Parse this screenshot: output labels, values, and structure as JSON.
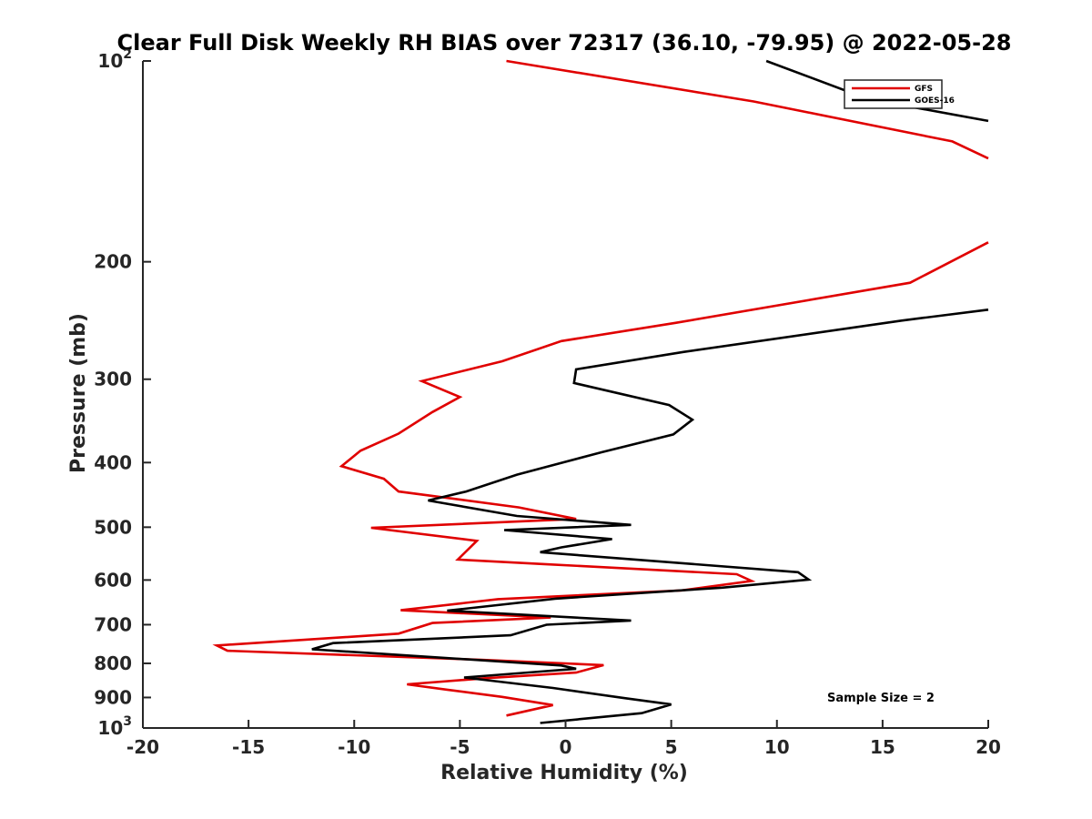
{
  "chart_data": {
    "type": "line",
    "title": "Clear Full Disk Weekly RH BIAS over 72317 (36.10, -79.95) @ 2022-05-28",
    "xlabel": "Relative Humidity (%)",
    "ylabel": "Pressure (mb)",
    "xlim": [
      -20,
      20
    ],
    "ylim": [
      100,
      1000
    ],
    "y_scale": "log",
    "y_reversed": true,
    "grid": false,
    "x_ticks": [
      -20,
      -15,
      -10,
      -5,
      0,
      5,
      10,
      15,
      20
    ],
    "x_tick_labels": [
      "-20",
      "-15",
      "-10",
      "-5",
      "0",
      "5",
      "10",
      "15",
      "20"
    ],
    "y_ticks": [
      100,
      200,
      300,
      400,
      500,
      600,
      700,
      800,
      900,
      1000
    ],
    "y_tick_labels": [
      {
        "base": "10",
        "sup": "2"
      },
      {
        "base": "200",
        "sup": ""
      },
      {
        "base": "300",
        "sup": ""
      },
      {
        "base": "400",
        "sup": ""
      },
      {
        "base": "500",
        "sup": ""
      },
      {
        "base": "600",
        "sup": ""
      },
      {
        "base": "700",
        "sup": ""
      },
      {
        "base": "800",
        "sup": ""
      },
      {
        "base": "900",
        "sup": ""
      },
      {
        "base": "10",
        "sup": "3"
      }
    ],
    "legend_position": "top-right",
    "annotation": "Sample Size = 2",
    "series": [
      {
        "name": "GFS",
        "color": "#e00000",
        "segments": [
          [
            [
              -2.8,
              100
            ],
            [
              8.9,
              115
            ],
            [
              18.3,
              132
            ],
            [
              20,
              140
            ]
          ],
          [
            [
              20,
              187
            ],
            [
              16.3,
              215
            ],
            [
              5.2,
              247
            ],
            [
              -0.2,
              263
            ],
            [
              -3.0,
              282
            ],
            [
              -6.8,
              302
            ],
            [
              -5.0,
              319
            ],
            [
              -6.3,
              336
            ],
            [
              -7.9,
              362
            ],
            [
              -9.7,
              384
            ],
            [
              -10.6,
              405
            ],
            [
              -8.6,
              423
            ],
            [
              -7.9,
              442
            ],
            [
              -2.2,
              467
            ],
            [
              0.5,
              486
            ],
            [
              -9.2,
              501
            ],
            [
              -4.2,
              524
            ],
            [
              -5.1,
              559
            ],
            [
              -1.0,
              568
            ],
            [
              8.1,
              588
            ],
            [
              8.8,
              602
            ],
            [
              5.5,
              622
            ],
            [
              -3.2,
              641
            ],
            [
              -7.8,
              666
            ],
            [
              -0.7,
              683
            ],
            [
              -6.3,
              696
            ],
            [
              -7.9,
              722
            ],
            [
              -16.5,
              752
            ],
            [
              -16.0,
              766
            ],
            [
              -4.0,
              790
            ],
            [
              1.8,
              805
            ],
            [
              0.5,
              826
            ],
            [
              -3.8,
              842
            ],
            [
              -7.5,
              860
            ],
            [
              -5.6,
              876
            ],
            [
              -3.0,
              898
            ],
            [
              -0.6,
              924
            ],
            [
              -2.8,
              958
            ]
          ]
        ]
      },
      {
        "name": "GOES-16",
        "color": "#000000",
        "segments": [
          [
            [
              9.5,
              100
            ],
            [
              14.3,
              114
            ],
            [
              20,
              123
            ]
          ],
          [
            [
              20,
              236
            ],
            [
              15.9,
              245
            ],
            [
              5.6,
              273
            ],
            [
              0.5,
              290
            ],
            [
              0.4,
              304
            ],
            [
              4.9,
              328
            ],
            [
              6.0,
              345
            ],
            [
              5.1,
              363
            ],
            [
              1.7,
              386
            ],
            [
              -2.3,
              417
            ],
            [
              -4.7,
              442
            ],
            [
              -6.5,
              456
            ],
            [
              -2.3,
              481
            ],
            [
              3.1,
              496
            ],
            [
              -2.9,
              505
            ],
            [
              2.2,
              521
            ],
            [
              -0.2,
              536
            ],
            [
              -1.2,
              545
            ],
            [
              11.0,
              584
            ],
            [
              11.5,
              599
            ],
            [
              7.4,
              616
            ],
            [
              -0.5,
              640
            ],
            [
              -5.6,
              667
            ],
            [
              3.1,
              690
            ],
            [
              -0.9,
              700
            ],
            [
              -2.6,
              726
            ],
            [
              -11.0,
              746
            ],
            [
              -12.0,
              762
            ],
            [
              -0.2,
              806
            ],
            [
              0.5,
              815
            ],
            [
              -1.2,
              823
            ],
            [
              -4.8,
              840
            ],
            [
              -0.6,
              871
            ],
            [
              2.8,
              902
            ],
            [
              5.0,
              922
            ],
            [
              3.6,
              950
            ],
            [
              -1.2,
              983
            ]
          ]
        ]
      }
    ]
  }
}
